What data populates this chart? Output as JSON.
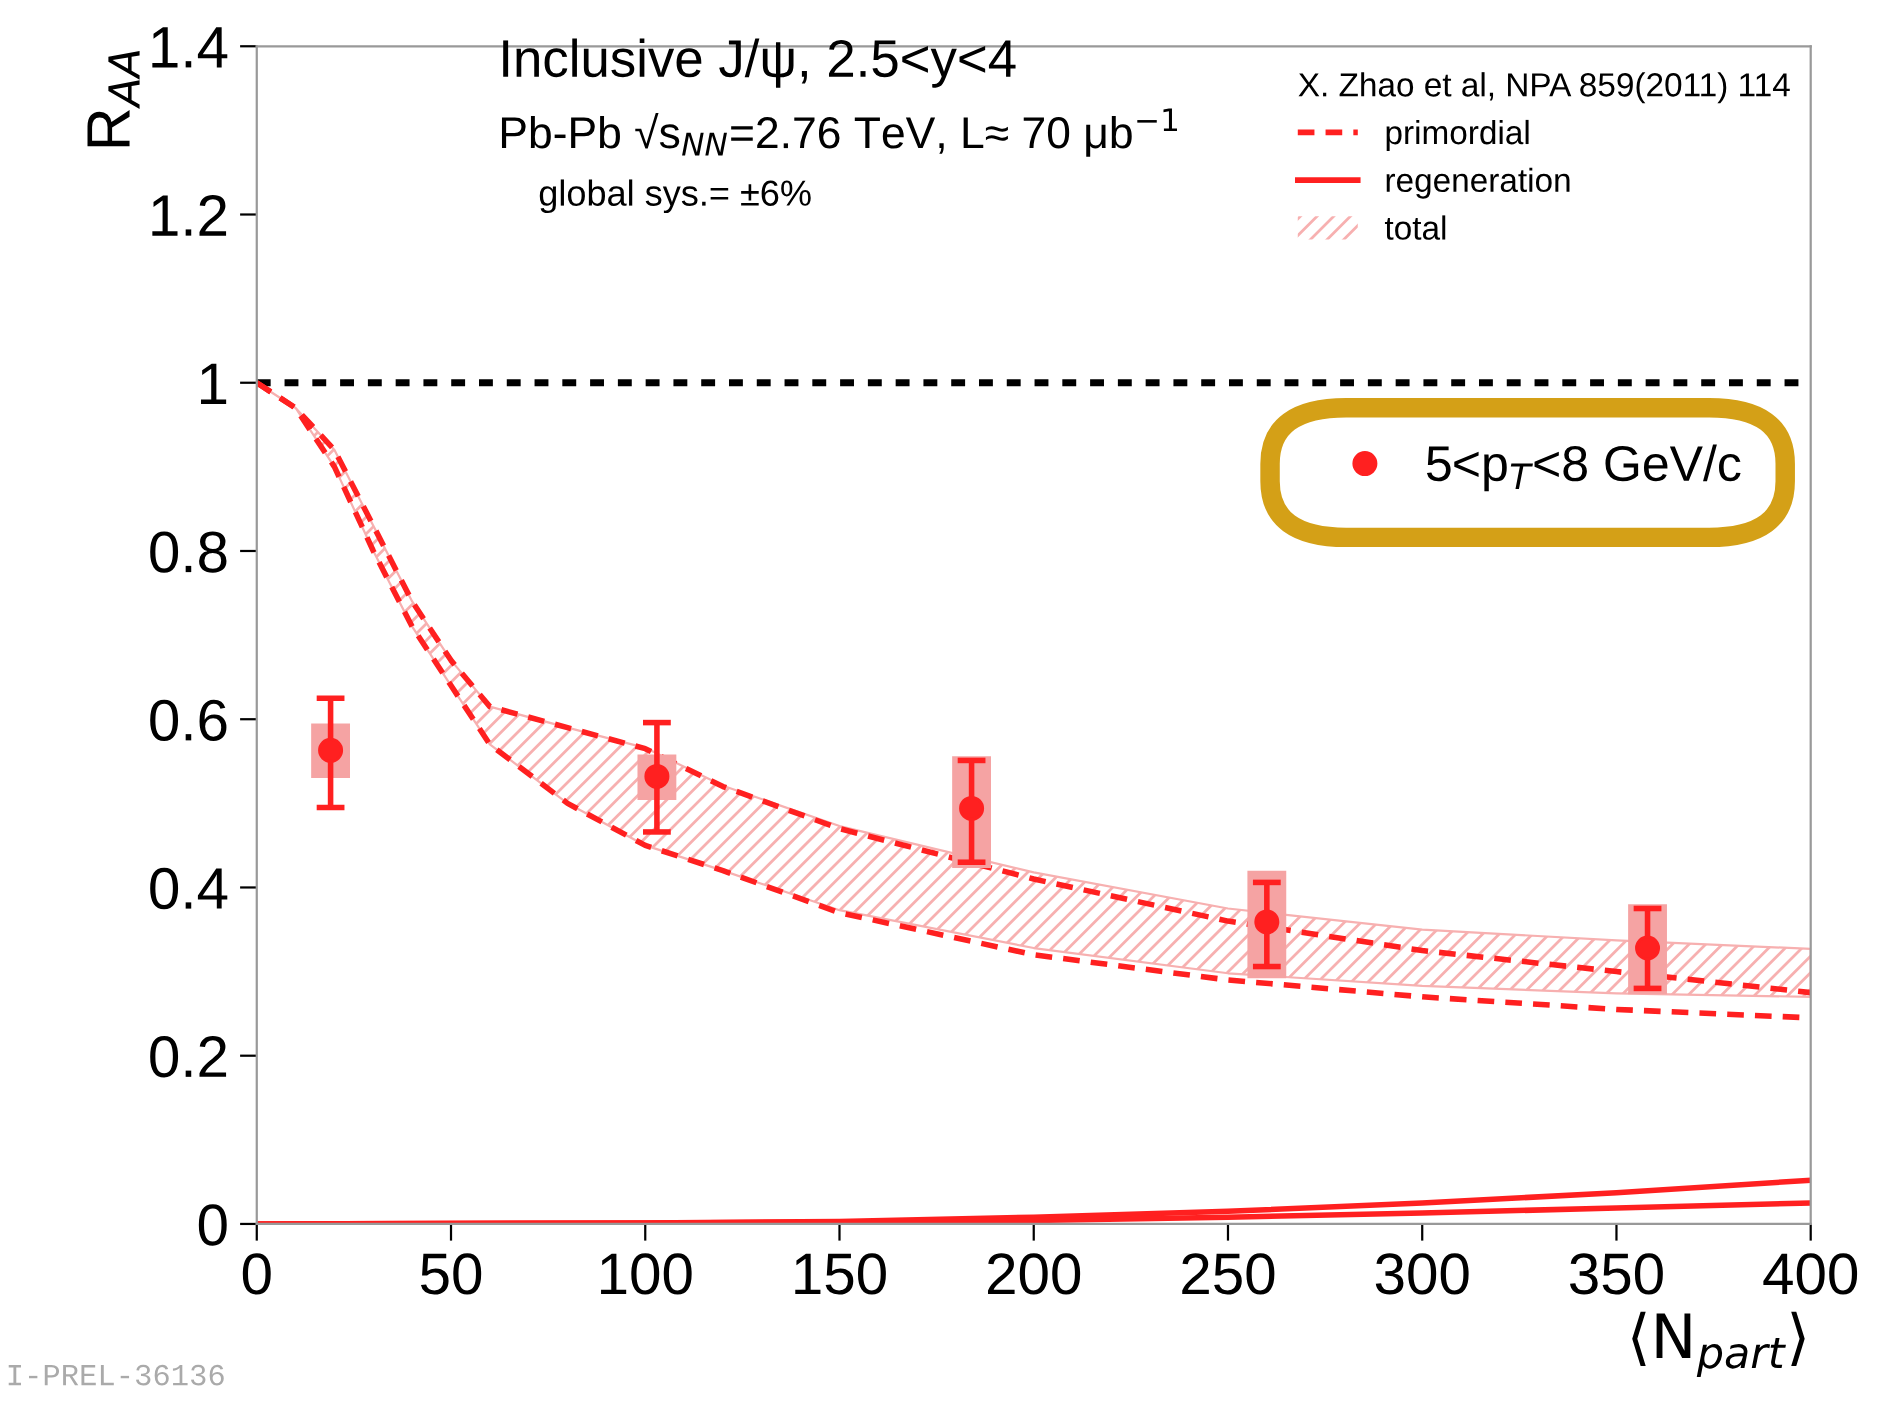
{
  "chart_data": {
    "type": "line",
    "xlabel": "⟨N$_{part}$⟩",
    "ylabel": "R$_{AA}$",
    "legend_title": "X. Zhao et al, NPA 859(2011) 114",
    "legend": "top right",
    "xlim": [
      0,
      400
    ],
    "xticks": [
      0,
      50,
      100,
      150,
      200,
      250,
      300,
      350,
      400
    ],
    "ylim": [
      0,
      1.4
    ],
    "yticks": [
      0,
      0.2,
      0.4,
      0.6,
      0.8,
      1,
      1.2,
      1.4
    ],
    "grid": false,
    "annotations": [
      "Inclusive J/ψ, 2.5<y<4",
      "Pb-Pb √s$_{NN}$=2.76 TeV, L≈ 70 μb$^{−1}$",
      "global sys.= ±6%",
      "I-PREL-36136"
    ],
    "ref_lines": [
      {
        "axis": "y",
        "value": 1,
        "color": "#000000",
        "line_style": "dotted"
      }
    ],
    "series": [
      {
        "name": "primordial",
        "line_style": "dashed",
        "color": "#ff2020",
        "x": [
          0,
          10,
          20,
          30,
          40,
          50,
          60,
          80,
          100,
          120,
          150,
          200,
          250,
          300,
          350,
          400
        ],
        "values": [
          1,
          0.97,
          0.92,
          0.83,
          0.74,
          0.67,
          0.615,
          0.59,
          0.565,
          0.52,
          0.47,
          0.41,
          0.36,
          0.325,
          0.3,
          0.275
        ]
      },
      {
        "line_style": "dashed",
        "color": "#ff2020",
        "x": [
          0,
          10,
          20,
          30,
          40,
          50,
          60,
          80,
          100,
          120,
          150,
          200,
          250,
          300,
          350,
          400
        ],
        "values": [
          1,
          0.97,
          0.9,
          0.8,
          0.71,
          0.64,
          0.57,
          0.5,
          0.45,
          0.42,
          0.37,
          0.32,
          0.29,
          0.27,
          0.255,
          0.245
        ]
      },
      {
        "name": "regeneration",
        "line_style": "solid",
        "color": "#ff2020",
        "x": [
          0,
          100,
          150,
          200,
          250,
          300,
          350,
          400
        ],
        "values": [
          0,
          0.001,
          0.003,
          0.008,
          0.015,
          0.025,
          0.037,
          0.052
        ]
      },
      {
        "line_style": "solid",
        "color": "#ff2020",
        "x": [
          0,
          100,
          150,
          200,
          250,
          300,
          350,
          400
        ],
        "values": [
          0,
          0.001,
          0.002,
          0.004,
          0.008,
          0.013,
          0.019,
          0.025
        ]
      },
      {
        "name": "total",
        "type": "area",
        "color": "#f7b0b0",
        "x": [
          0,
          10,
          20,
          30,
          40,
          50,
          60,
          80,
          100,
          120,
          150,
          200,
          250,
          300,
          350,
          400
        ],
        "values": [
          null,
          null,
          null,
          null,
          null,
          null,
          null,
          null,
          null,
          null,
          null,
          null,
          null,
          null,
          null,
          null
        ],
        "lower": [
          1,
          0.97,
          0.9,
          0.8,
          0.71,
          0.64,
          0.57,
          0.5,
          0.45,
          0.42,
          0.373,
          0.328,
          0.298,
          0.283,
          0.274,
          0.27
        ],
        "upper": [
          1,
          0.97,
          0.92,
          0.83,
          0.74,
          0.67,
          0.615,
          0.59,
          0.566,
          0.521,
          0.473,
          0.418,
          0.375,
          0.35,
          0.337,
          0.327
        ]
      },
      {
        "type": "bar",
        "color": "#f5a3a3",
        "x": [
          19,
          103,
          184,
          260,
          358
        ],
        "base": [
          0.53,
          0.504,
          0.423,
          0.292,
          0.273
        ],
        "values": [
          0.065,
          0.054,
          0.133,
          0.128,
          0.107
        ]
      },
      {
        "name": "5<p$_{T}$<8 GeV/c",
        "type": "scatter",
        "marker": "circle",
        "color": "#ff2020",
        "x": [
          19,
          103,
          184,
          260,
          358
        ],
        "values": [
          0.563,
          0.532,
          0.494,
          0.359,
          0.328
        ],
        "errors": [
          [
            0.495,
            0.625
          ],
          [
            0.466,
            0.596
          ],
          [
            0.43,
            0.551
          ],
          [
            0.306,
            0.406
          ],
          [
            0.28,
            0.375
          ]
        ]
      }
    ]
  }
}
